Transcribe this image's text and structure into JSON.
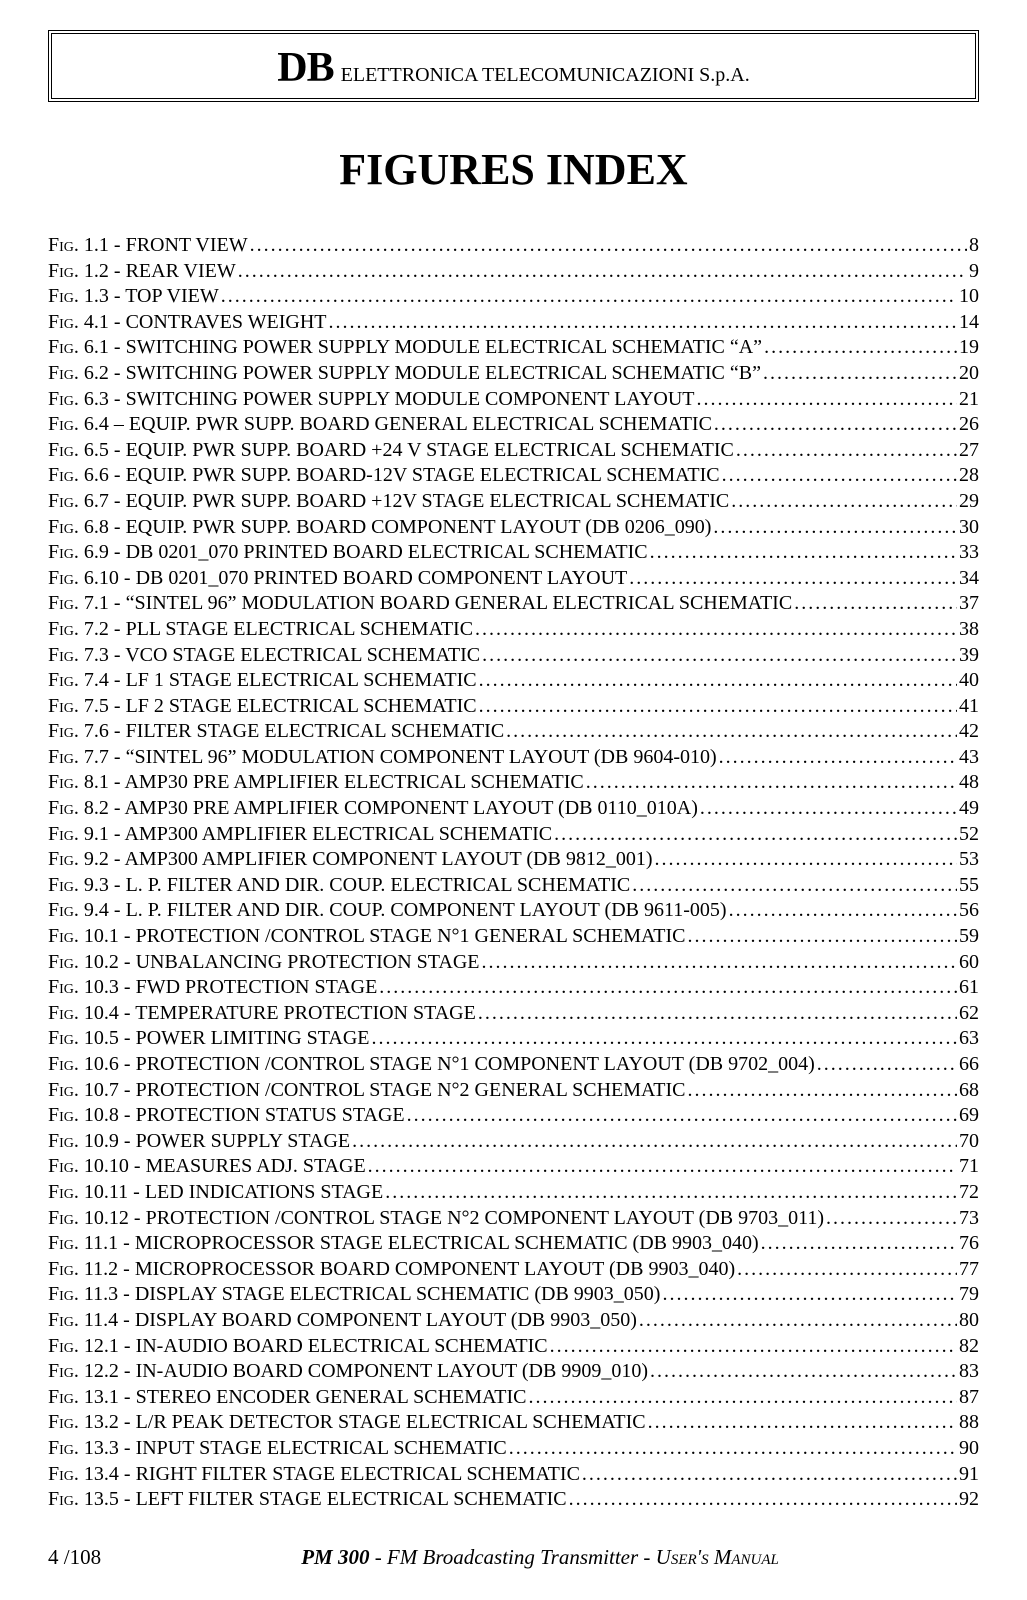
{
  "header": {
    "logo_bold": "DB",
    "logo_rest": " ELETTRONICA TELECOMUNICAZIONI S.p.A."
  },
  "title": "FIGURES INDEX",
  "fig_prefix": "Fig",
  "entries": [
    {
      "num": "1.1",
      "title": "FRONT VIEW",
      "page": "8"
    },
    {
      "num": "1.2",
      "title": "REAR VIEW",
      "page": "9"
    },
    {
      "num": "1.3",
      "title": "TOP VIEW",
      "page": "10"
    },
    {
      "num": "4.1",
      "title": "CONTRAVES WEIGHT",
      "page": "14"
    },
    {
      "num": "6.1",
      "title": "SWITCHING POWER SUPPLY MODULE ELECTRICAL SCHEMATIC “A”",
      "page": "19"
    },
    {
      "num": "6.2",
      "title": "SWITCHING POWER SUPPLY MODULE ELECTRICAL SCHEMATIC “B”",
      "page": "20"
    },
    {
      "num": "6.3",
      "title": "SWITCHING POWER SUPPLY MODULE COMPONENT LAYOUT",
      "page": "21"
    },
    {
      "num": "6.4",
      "sep": " – ",
      "title": "EQUIP. PWR SUPP. BOARD GENERAL ELECTRICAL SCHEMATIC",
      "page": "26"
    },
    {
      "num": "6.5",
      "title": "EQUIP. PWR SUPP. BOARD +24 V STAGE ELECTRICAL SCHEMATIC",
      "page": "27"
    },
    {
      "num": "6.6",
      "title": "EQUIP. PWR SUPP. BOARD-12V STAGE ELECTRICAL SCHEMATIC",
      "page": "28"
    },
    {
      "num": "6.7",
      "title": "EQUIP. PWR SUPP. BOARD +12V STAGE ELECTRICAL SCHEMATIC",
      "page": "29"
    },
    {
      "num": "6.8",
      "title": "EQUIP. PWR SUPP. BOARD COMPONENT LAYOUT (DB 0206_090)",
      "page": "30"
    },
    {
      "num": "6.9",
      "title": "DB 0201_070 PRINTED BOARD ELECTRICAL SCHEMATIC",
      "page": "33"
    },
    {
      "num": "6.10",
      "title": "DB 0201_070 PRINTED BOARD COMPONENT LAYOUT",
      "page": "34"
    },
    {
      "num": "7.1",
      "title": "“SINTEL 96” MODULATION BOARD GENERAL ELECTRICAL SCHEMATIC",
      "page": "37"
    },
    {
      "num": "7.2",
      "title": "PLL STAGE ELECTRICAL SCHEMATIC",
      "page": "38"
    },
    {
      "num": "7.3",
      "title": "VCO STAGE ELECTRICAL SCHEMATIC",
      "page": "39"
    },
    {
      "num": "7.4",
      "title": "LF 1  STAGE ELECTRICAL SCHEMATIC",
      "page": "40"
    },
    {
      "num": "7.5",
      "title": "LF 2  STAGE ELECTRICAL SCHEMATIC",
      "page": "41"
    },
    {
      "num": "7.6",
      "title": "FILTER STAGE ELECTRICAL SCHEMATIC",
      "page": "42"
    },
    {
      "num": "7.7",
      "title": "“SINTEL 96” MODULATION COMPONENT LAYOUT (DB 9604-010)",
      "page": "43"
    },
    {
      "num": "8.1",
      "title": "AMP30 PRE AMPLIFIER ELECTRICAL SCHEMATIC",
      "page": "48"
    },
    {
      "num": "8.2",
      "title": "AMP30 PRE AMPLIFIER COMPONENT LAYOUT (DB 0110_010A)",
      "page": "49"
    },
    {
      "num": "9.1",
      "title": "AMP300 AMPLIFIER ELECTRICAL SCHEMATIC",
      "page": "52"
    },
    {
      "num": "9.2",
      "title": "AMP300 AMPLIFIER COMPONENT LAYOUT (DB 9812_001)",
      "page": "53"
    },
    {
      "num": "9.3",
      "title": "L. P. FILTER AND DIR. COUP. ELECTRICAL SCHEMATIC",
      "page": "55"
    },
    {
      "num": "9.4",
      "title": "L. P. FILTER AND DIR. COUP. COMPONENT LAYOUT (DB 9611-005)",
      "page": "56"
    },
    {
      "num": "10.1",
      "title": "PROTECTION /CONTROL STAGE N°1  GENERAL SCHEMATIC",
      "page": "59"
    },
    {
      "num": "10.2",
      "title": "UNBALANCING PROTECTION STAGE",
      "page": "60"
    },
    {
      "num": "10.3",
      "title": "FWD PROTECTION STAGE",
      "page": "61"
    },
    {
      "num": "10.4",
      "title": "TEMPERATURE PROTECTION STAGE",
      "page": "62"
    },
    {
      "num": "10.5",
      "title": "POWER LIMITING STAGE",
      "page": "63"
    },
    {
      "num": "10.6",
      "title": "PROTECTION /CONTROL STAGE N°1  COMPONENT LAYOUT (DB 9702_004)",
      "page": "66"
    },
    {
      "num": "10.7",
      "title": "PROTECTION /CONTROL STAGE N°2  GENERAL SCHEMATIC",
      "page": "68"
    },
    {
      "num": "10.8",
      "title": "PROTECTION STATUS STAGE",
      "page": "69"
    },
    {
      "num": "10.9",
      "title": "POWER SUPPLY STAGE",
      "page": "70"
    },
    {
      "num": "10.10",
      "title": "MEASURES ADJ. STAGE",
      "page": "71"
    },
    {
      "num": "10.11",
      "title": "LED INDICATIONS STAGE",
      "page": "72"
    },
    {
      "num": "10.12",
      "title": "PROTECTION /CONTROL STAGE N°2  COMPONENT LAYOUT (DB 9703_011)",
      "page": "73"
    },
    {
      "num": "11.1",
      "title": "MICROPROCESSOR STAGE ELECTRICAL SCHEMATIC (DB 9903_040)",
      "page": "76"
    },
    {
      "num": "11.2",
      "title": "MICROPROCESSOR BOARD COMPONENT LAYOUT (DB 9903_040)",
      "page": "77"
    },
    {
      "num": "11.3",
      "title": "DISPLAY STAGE ELECTRICAL SCHEMATIC (DB 9903_050)",
      "page": "79"
    },
    {
      "num": "11.4",
      "title": "DISPLAY BOARD COMPONENT LAYOUT (DB 9903_050)",
      "page": "80"
    },
    {
      "num": "12.1",
      "title": "IN-AUDIO BOARD ELECTRICAL SCHEMATIC",
      "page": "82"
    },
    {
      "num": "12.2",
      "title": "IN-AUDIO BOARD COMPONENT LAYOUT (DB 9909_010)",
      "page": "83"
    },
    {
      "num": "13.1",
      "title": "STEREO ENCODER GENERAL SCHEMATIC",
      "page": "87"
    },
    {
      "num": "13.2",
      "title": "L/R PEAK DETECTOR STAGE ELECTRICAL SCHEMATIC",
      "page": "88"
    },
    {
      "num": "13.3",
      "title": "INPUT STAGE ELECTRICAL SCHEMATIC",
      "page": "90"
    },
    {
      "num": "13.4",
      "title": "RIGHT FILTER STAGE ELECTRICAL SCHEMATIC",
      "page": "91"
    },
    {
      "num": "13.5",
      "title": "LEFT FILTER STAGE ELECTRICAL SCHEMATIC",
      "page": "92"
    }
  ],
  "footer": {
    "page_number": "4 /108",
    "product_bold": "PM 300",
    "product_rest": " - FM Broadcasting Transmitter - ",
    "manual_label": "User's Manual"
  },
  "colors": {
    "text": "#000000",
    "background": "#ffffff"
  },
  "typography": {
    "body_family": "Times New Roman",
    "title_size_pt": 33,
    "entry_size_pt": 15,
    "header_logo_size_pt": 32
  }
}
